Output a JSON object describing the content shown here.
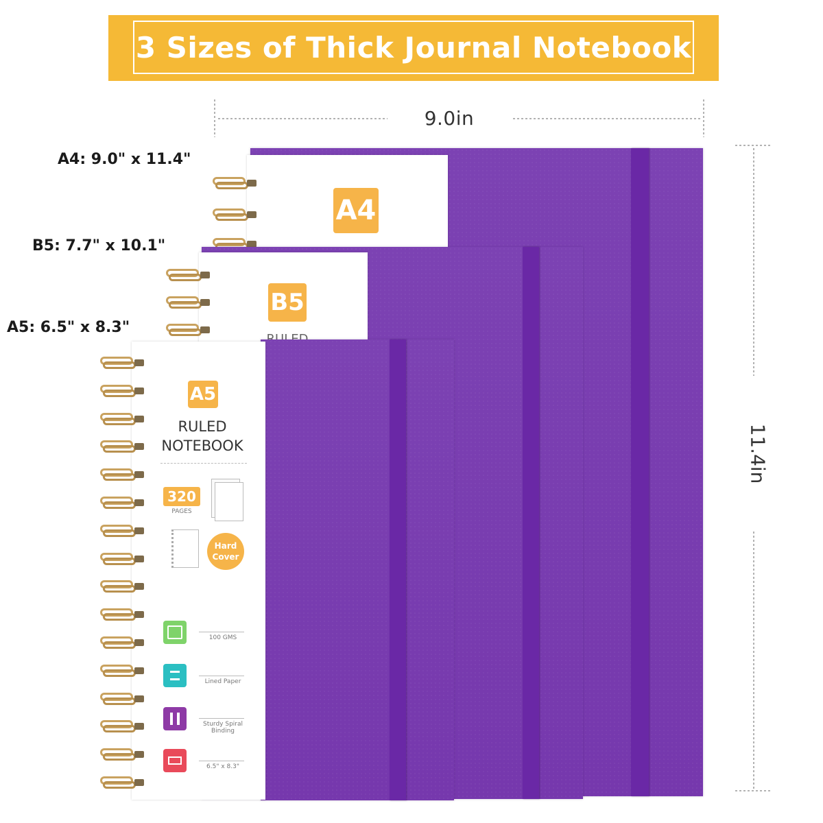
{
  "banner": {
    "title": "3 Sizes of Thick Journal Notebook"
  },
  "dimensions": {
    "width_label": "9.0in",
    "height_label": "11.4in"
  },
  "sizes": [
    {
      "label": "A4: 9.0\" x 11.4\"",
      "badge": "A4"
    },
    {
      "label": "B5: 7.7\" x 10.1\"",
      "badge": "B5",
      "partial_text": "RULED"
    },
    {
      "label": "A5: 6.5\" x 8.3\"",
      "badge": "A5"
    }
  ],
  "a5_cover": {
    "title_line1": "RULED",
    "title_line2": "NOTEBOOK",
    "pages_number": "320",
    "pages_label": "PAGES",
    "hard_cover": [
      "Hard",
      "Cover"
    ],
    "features": [
      {
        "icon": "gsm-paper-icon",
        "text": "100 GMS",
        "color": "#7fd36a"
      },
      {
        "icon": "lined-paper-icon",
        "text": "Lined Paper",
        "color": "#2bbfc2"
      },
      {
        "icon": "spiral-binding-icon",
        "text": "Sturdy Spiral Binding",
        "color": "#8e3aa6"
      },
      {
        "icon": "size-icon",
        "text": "6.5\" x 8.3\"",
        "color": "#e94a5a"
      }
    ]
  },
  "colors": {
    "banner": "#f5b936",
    "cover": "#7a3fb0",
    "band": "#6a28a6",
    "badge": "#f6b449",
    "coil": "#c9a25f"
  }
}
